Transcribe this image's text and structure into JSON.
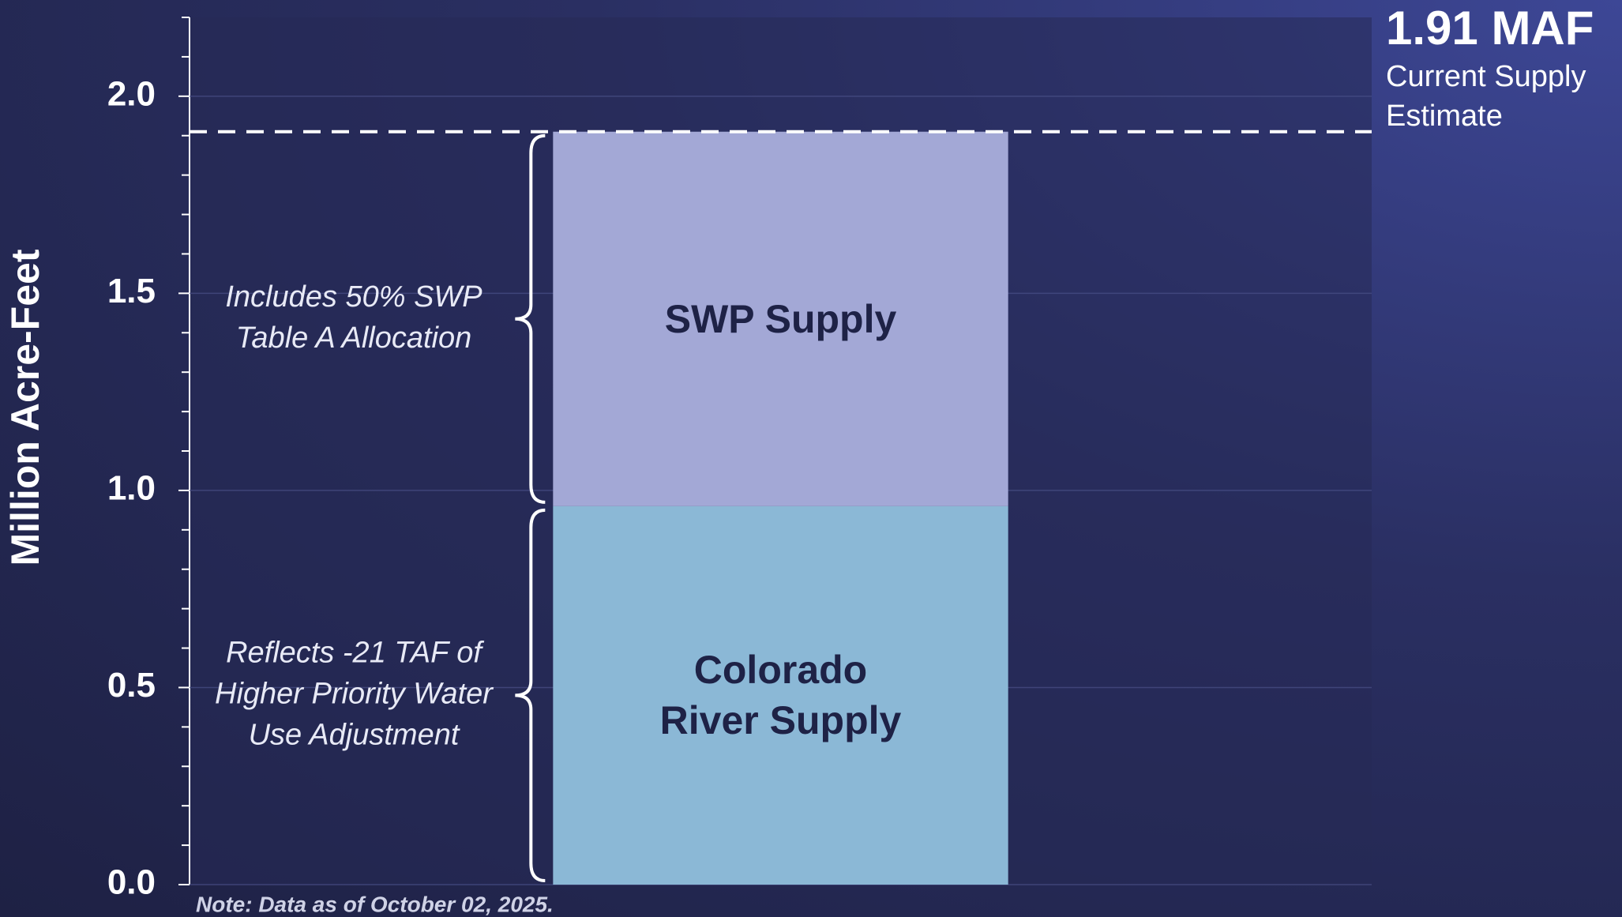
{
  "chart_data": {
    "type": "stacked_bar",
    "y_label": "Million Acre-Feet",
    "categories": [
      null
    ],
    "series": [
      {
        "name": "Colorado River Supply",
        "color": "#8bb8d6",
        "values": [
          0.96
        ]
      },
      {
        "name": "SWP Supply",
        "color": "#a3a8d6",
        "values": [
          0.95
        ]
      }
    ],
    "annotations": [
      {
        "lines": [
          "Reflects -21 TAF of",
          "Higher Priority Water",
          "Use Adjustment"
        ]
      },
      {
        "lines": [
          "Includes 50% SWP",
          "Table A Allocation"
        ]
      }
    ],
    "reference_line": {
      "value": 1.91,
      "label": "1.91 MAF",
      "description": "Current Supply Estimate"
    },
    "note": "Note: Data as of October 02, 2025.",
    "ylim": [
      0,
      2.2
    ],
    "yticks": [
      {
        "value": 0,
        "label": "0.0"
      },
      0.5,
      {
        "value": 1,
        "label": "1.0"
      },
      1.5,
      {
        "value": 2,
        "label": "2.0"
      }
    ],
    "minor_yticks": [
      0.1,
      0.2,
      0.3,
      0.4,
      0.6,
      0.7,
      0.8,
      0.9,
      1.1,
      1.2,
      1.3,
      1.4,
      1.6,
      1.7,
      1.8,
      1.9,
      2.1,
      2.2
    ],
    "grid": true
  }
}
